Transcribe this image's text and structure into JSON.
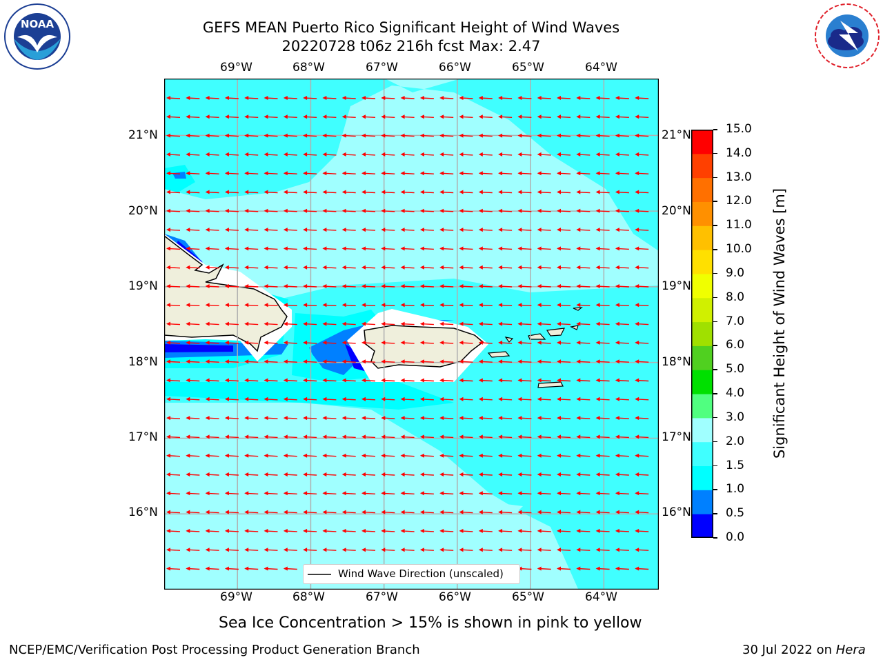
{
  "title": {
    "line1": "GEFS MEAN Puerto Rico Significant Height of Wind Waves",
    "line2": "20220728 t06z 216h fcst   Max: 2.47"
  },
  "logos": {
    "left": {
      "icon": "noaa-logo",
      "text": "NOAA",
      "ring_text": "NATIONAL OCEANIC AND ATMOSPHERIC ADMINISTRATION · U.S. DEPARTMENT OF COMMERCE"
    },
    "right": {
      "icon": "nws-logo",
      "ring_text": "NATIONAL WEATHER SERVICE"
    }
  },
  "map": {
    "lon_labels": [
      "69°W",
      "68°W",
      "67°W",
      "66°W",
      "65°W",
      "64°W"
    ],
    "lat_labels": [
      "21°N",
      "20°N",
      "19°N",
      "18°N",
      "17°N",
      "16°N"
    ],
    "lon_values": [
      -69,
      -68,
      -67,
      -66,
      -65,
      -64
    ],
    "lat_values": [
      21,
      20,
      19,
      18,
      17,
      16
    ],
    "extent": {
      "lon": [
        -70,
        -63.25
      ],
      "lat": [
        15,
        21.75
      ]
    },
    "arrow_color": "#ff0000",
    "land_color": "#efefdc",
    "legend_label": "Wind Wave Direction (unscaled)"
  },
  "colorbar": {
    "label": "Significant Height of Wind Waves [m]",
    "ticks": [
      "0.0",
      "0.5",
      "1.0",
      "1.5",
      "2.0",
      "3.0",
      "4.0",
      "5.0",
      "6.0",
      "7.0",
      "8.0",
      "9.0",
      "10.0",
      "11.0",
      "12.0",
      "13.0",
      "14.0",
      "15.0"
    ],
    "colors": [
      "#0000ff",
      "#0080ff",
      "#00ffff",
      "#40ffff",
      "#a0ffff",
      "#50ff80",
      "#00e000",
      "#50d020",
      "#a0e000",
      "#d0f000",
      "#f0ff00",
      "#ffe000",
      "#ffc000",
      "#ff9000",
      "#ff7000",
      "#ff4000",
      "#ff0000"
    ]
  },
  "notes": {
    "sea_ice": "Sea Ice Concentration > 15% is shown in pink to yellow",
    "credit": "NCEP/EMC/Verification Post Processing Product Generation Branch",
    "date": "30 Jul 2022 on ",
    "host": "Hera"
  }
}
